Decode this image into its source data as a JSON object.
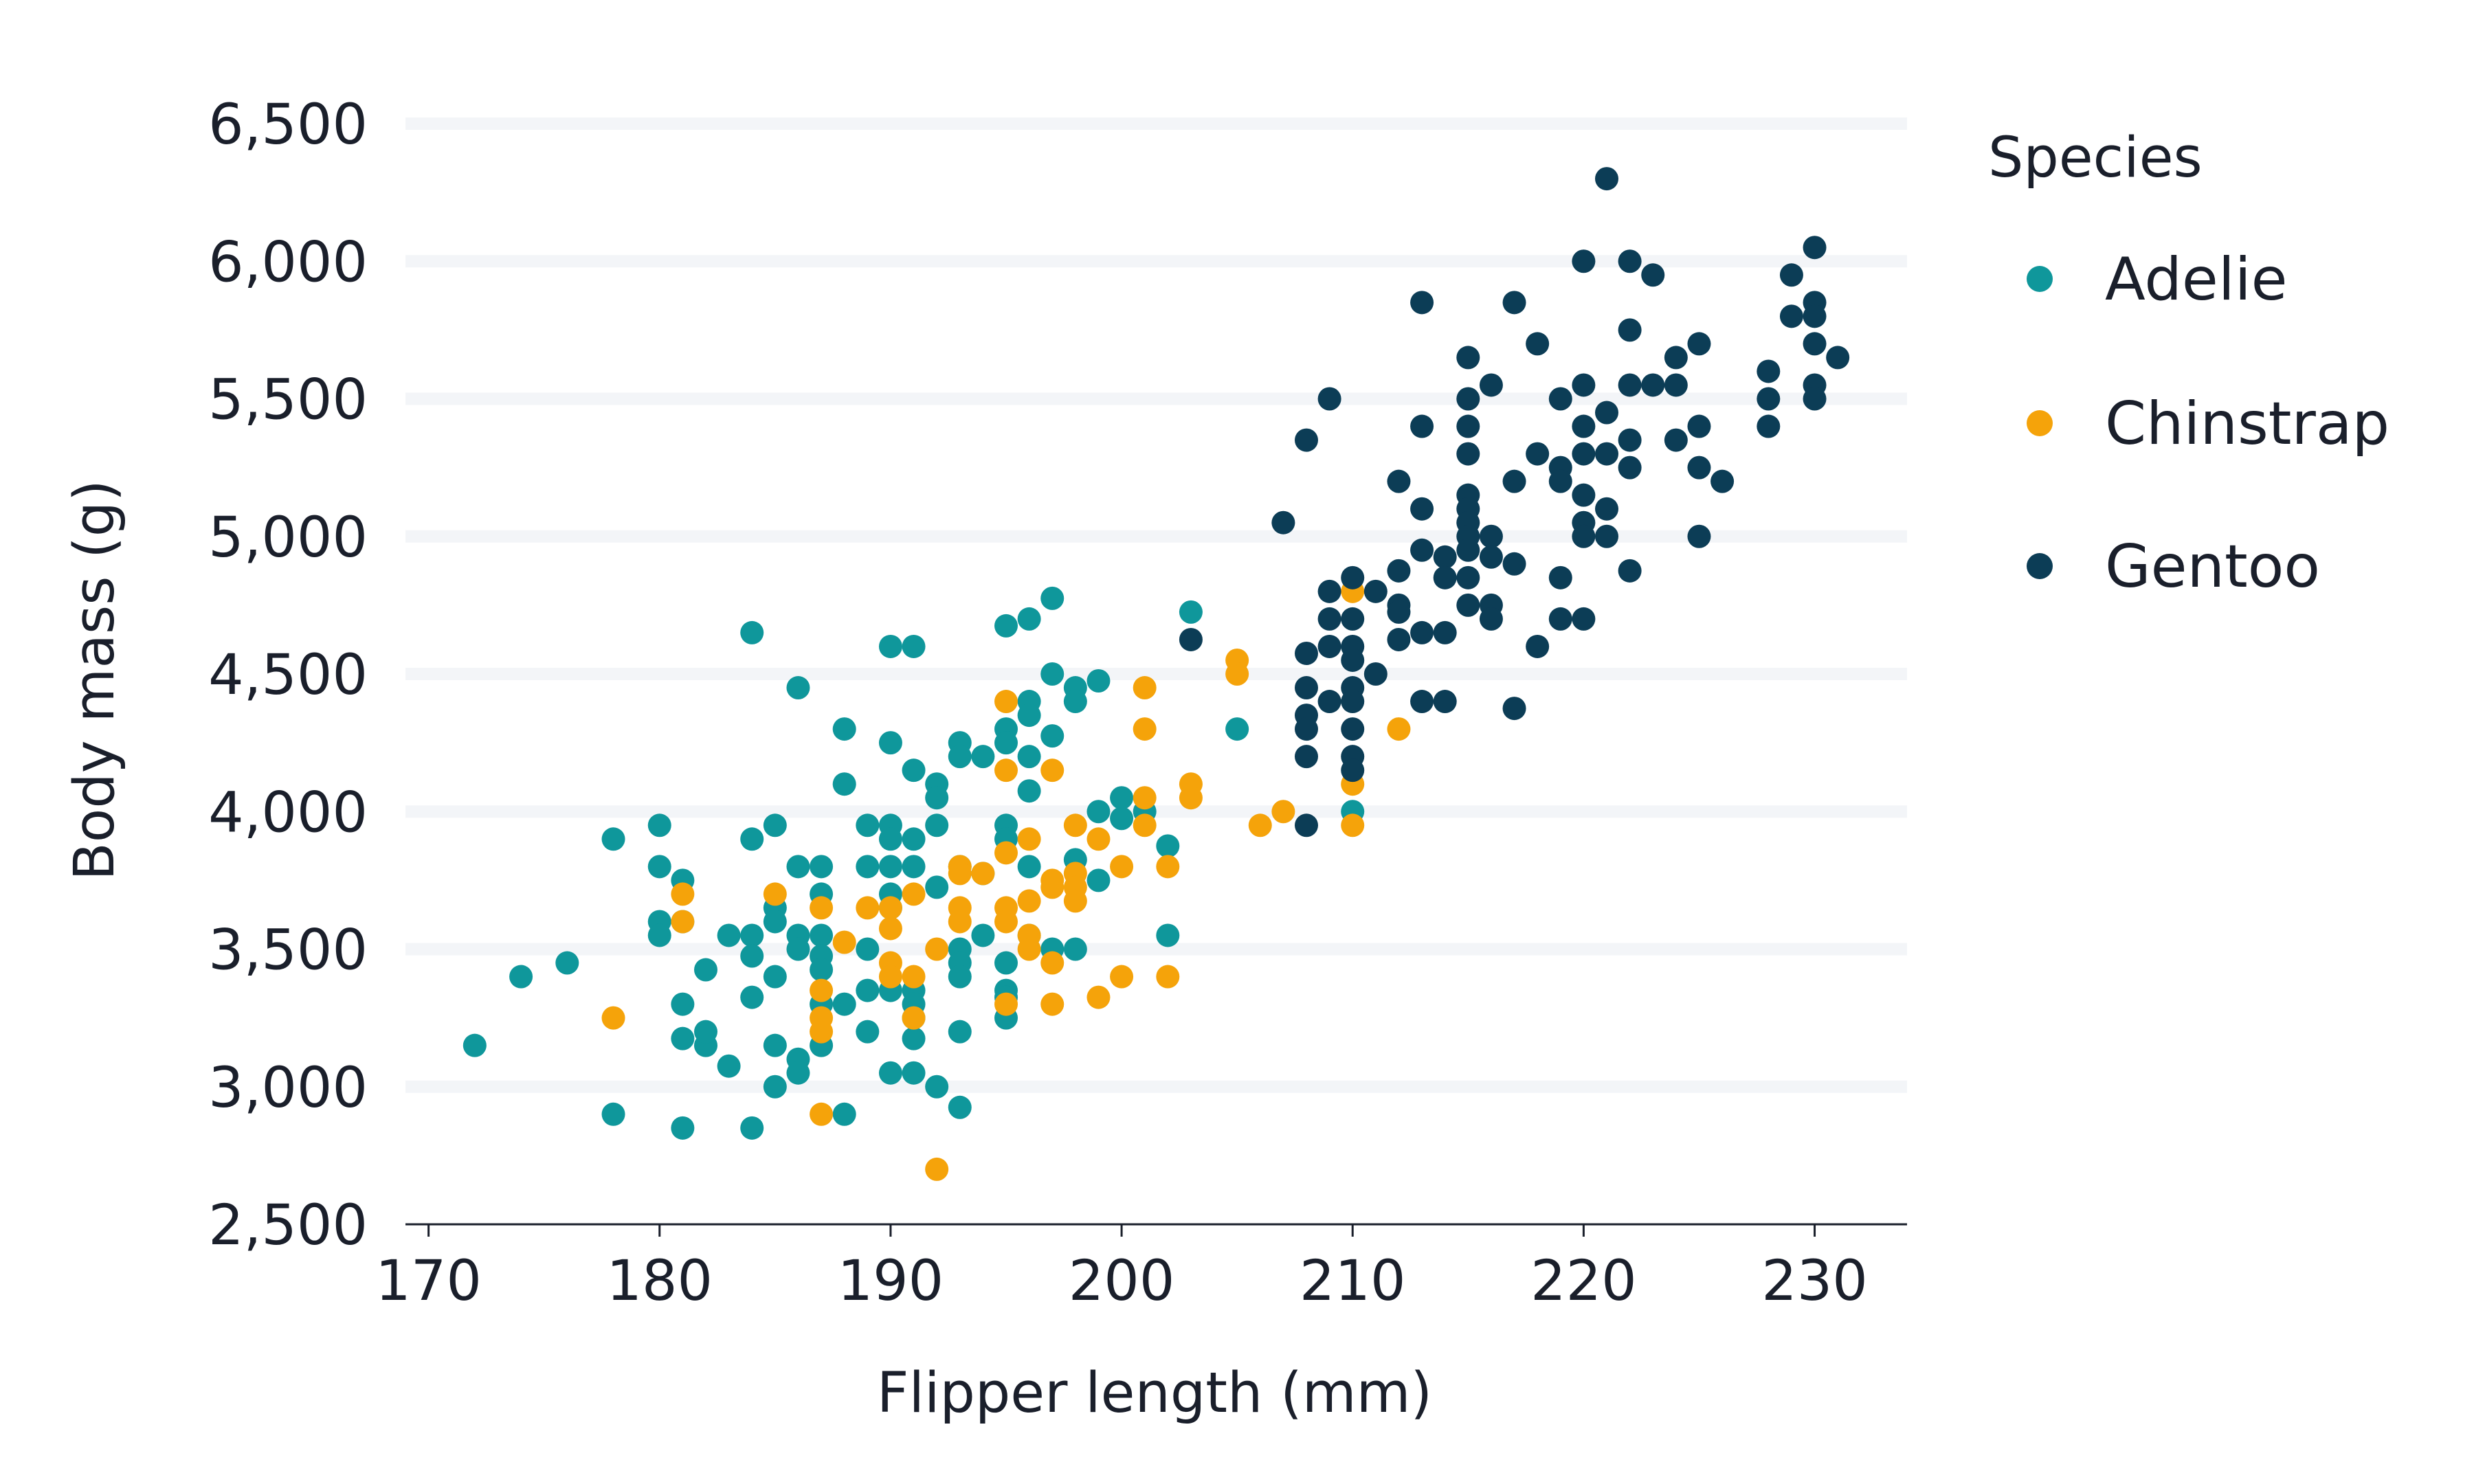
{
  "chart_data": {
    "type": "scatter",
    "title": "",
    "xlabel": "Flipper length (mm)",
    "ylabel": "Body mass (g)",
    "xlim": [
      169,
      234
    ],
    "ylim": [
      2500,
      6500
    ],
    "xticks": [
      170,
      180,
      190,
      200,
      210,
      220,
      230
    ],
    "yticks": [
      2500,
      3000,
      3500,
      4000,
      4500,
      5000,
      5500,
      6000,
      6500
    ],
    "xtick_labels": [
      "170",
      "180",
      "190",
      "200",
      "210",
      "220",
      "230"
    ],
    "ytick_labels": [
      "2,500",
      "3,000",
      "3,500",
      "4,000",
      "4,500",
      "5,000",
      "5,500",
      "6,000",
      "6,500"
    ],
    "grid": "horizontal",
    "legend": {
      "title": "Species",
      "position": "right"
    },
    "colors": {
      "Adelie": "#0f979b",
      "Chinstrap": "#f5a30a",
      "Gentoo": "#0c3d56",
      "grid": "#f3f5f8",
      "axis": "#1a1f2b"
    },
    "series": [
      {
        "name": "Adelie",
        "color": "#0f979b",
        "points": [
          [
            172,
            3150
          ],
          [
            174,
            3400
          ],
          [
            176,
            3450
          ],
          [
            178,
            3900
          ],
          [
            178,
            2900
          ],
          [
            180,
            3950
          ],
          [
            180,
            3800
          ],
          [
            180,
            3600
          ],
          [
            180,
            3550
          ],
          [
            181,
            3750
          ],
          [
            181,
            3600
          ],
          [
            181,
            3300
          ],
          [
            181,
            3175
          ],
          [
            181,
            2850
          ],
          [
            182,
            3150
          ],
          [
            182,
            3200
          ],
          [
            182,
            3425
          ],
          [
            183,
            3550
          ],
          [
            183,
            3075
          ],
          [
            184,
            4650
          ],
          [
            184,
            3900
          ],
          [
            184,
            3550
          ],
          [
            184,
            3475
          ],
          [
            184,
            3325
          ],
          [
            184,
            2850
          ],
          [
            185,
            3950
          ],
          [
            185,
            3650
          ],
          [
            185,
            3600
          ],
          [
            185,
            3400
          ],
          [
            185,
            3150
          ],
          [
            185,
            3000
          ],
          [
            186,
            4450
          ],
          [
            186,
            3800
          ],
          [
            186,
            3550
          ],
          [
            186,
            3500
          ],
          [
            186,
            3100
          ],
          [
            186,
            3050
          ],
          [
            187,
            3800
          ],
          [
            187,
            3700
          ],
          [
            187,
            3550
          ],
          [
            187,
            3475
          ],
          [
            187,
            3425
          ],
          [
            187,
            3300
          ],
          [
            187,
            3150
          ],
          [
            188,
            4300
          ],
          [
            188,
            4100
          ],
          [
            188,
            3300
          ],
          [
            188,
            2900
          ],
          [
            189,
            3950
          ],
          [
            189,
            3800
          ],
          [
            189,
            3500
          ],
          [
            189,
            3350
          ],
          [
            189,
            3200
          ],
          [
            190,
            4600
          ],
          [
            190,
            4250
          ],
          [
            190,
            3950
          ],
          [
            190,
            3900
          ],
          [
            190,
            3800
          ],
          [
            190,
            3700
          ],
          [
            190,
            3650
          ],
          [
            190,
            3350
          ],
          [
            190,
            3050
          ],
          [
            191,
            4600
          ],
          [
            191,
            4150
          ],
          [
            191,
            3900
          ],
          [
            191,
            3800
          ],
          [
            191,
            3350
          ],
          [
            191,
            3300
          ],
          [
            191,
            3250
          ],
          [
            191,
            3175
          ],
          [
            191,
            3050
          ],
          [
            192,
            4100
          ],
          [
            192,
            4050
          ],
          [
            192,
            3950
          ],
          [
            192,
            3725
          ],
          [
            192,
            3000
          ],
          [
            193,
            4250
          ],
          [
            193,
            4200
          ],
          [
            193,
            3800
          ],
          [
            193,
            3500
          ],
          [
            193,
            3450
          ],
          [
            193,
            3400
          ],
          [
            193,
            3200
          ],
          [
            193,
            2925
          ],
          [
            194,
            4200
          ],
          [
            194,
            3775
          ],
          [
            194,
            3550
          ],
          [
            195,
            4675
          ],
          [
            195,
            4300
          ],
          [
            195,
            4250
          ],
          [
            195,
            3950
          ],
          [
            195,
            3900
          ],
          [
            195,
            3450
          ],
          [
            195,
            3350
          ],
          [
            195,
            3325
          ],
          [
            195,
            3250
          ],
          [
            196,
            4700
          ],
          [
            196,
            4400
          ],
          [
            196,
            4350
          ],
          [
            196,
            4200
          ],
          [
            196,
            4075
          ],
          [
            196,
            3800
          ],
          [
            196,
            3550
          ],
          [
            197,
            4775
          ],
          [
            197,
            4500
          ],
          [
            197,
            4275
          ],
          [
            197,
            3500
          ],
          [
            198,
            4450
          ],
          [
            198,
            4400
          ],
          [
            198,
            3825
          ],
          [
            198,
            3500
          ],
          [
            199,
            4475
          ],
          [
            199,
            4000
          ],
          [
            199,
            3750
          ],
          [
            200,
            4050
          ],
          [
            200,
            3975
          ],
          [
            201,
            4000
          ],
          [
            202,
            3875
          ],
          [
            202,
            3550
          ],
          [
            203,
            4725
          ],
          [
            205,
            4300
          ],
          [
            210,
            4000
          ]
        ]
      },
      {
        "name": "Chinstrap",
        "color": "#f5a30a",
        "points": [
          [
            178,
            3250
          ],
          [
            181,
            3700
          ],
          [
            181,
            3600
          ],
          [
            185,
            3700
          ],
          [
            187,
            3650
          ],
          [
            187,
            3350
          ],
          [
            187,
            3250
          ],
          [
            187,
            3200
          ],
          [
            187,
            2900
          ],
          [
            188,
            3525
          ],
          [
            189,
            3650
          ],
          [
            190,
            3650
          ],
          [
            190,
            3575
          ],
          [
            190,
            3450
          ],
          [
            190,
            3400
          ],
          [
            191,
            3700
          ],
          [
            191,
            3400
          ],
          [
            191,
            3250
          ],
          [
            192,
            3500
          ],
          [
            192,
            2700
          ],
          [
            193,
            3800
          ],
          [
            193,
            3775
          ],
          [
            193,
            3650
          ],
          [
            193,
            3600
          ],
          [
            194,
            3775
          ],
          [
            195,
            4400
          ],
          [
            195,
            4150
          ],
          [
            195,
            3850
          ],
          [
            195,
            3650
          ],
          [
            195,
            3600
          ],
          [
            195,
            3300
          ],
          [
            196,
            3900
          ],
          [
            196,
            3675
          ],
          [
            196,
            3550
          ],
          [
            196,
            3500
          ],
          [
            197,
            4150
          ],
          [
            197,
            3750
          ],
          [
            197,
            3725
          ],
          [
            197,
            3450
          ],
          [
            197,
            3300
          ],
          [
            198,
            3950
          ],
          [
            198,
            3775
          ],
          [
            198,
            3725
          ],
          [
            198,
            3675
          ],
          [
            199,
            3900
          ],
          [
            199,
            3325
          ],
          [
            200,
            3800
          ],
          [
            200,
            3400
          ],
          [
            201,
            4450
          ],
          [
            201,
            4300
          ],
          [
            201,
            4050
          ],
          [
            201,
            3950
          ],
          [
            202,
            3800
          ],
          [
            202,
            3400
          ],
          [
            203,
            4100
          ],
          [
            203,
            4050
          ],
          [
            205,
            4550
          ],
          [
            205,
            4500
          ],
          [
            206,
            3950
          ],
          [
            207,
            4000
          ],
          [
            210,
            4800
          ],
          [
            210,
            4100
          ],
          [
            210,
            3950
          ],
          [
            212,
            4300
          ]
        ]
      },
      {
        "name": "Gentoo",
        "color": "#0c3d56",
        "points": [
          [
            203,
            4625
          ],
          [
            207,
            5050
          ],
          [
            208,
            5350
          ],
          [
            208,
            4575
          ],
          [
            208,
            4450
          ],
          [
            208,
            4350
          ],
          [
            208,
            4300
          ],
          [
            208,
            4200
          ],
          [
            208,
            3950
          ],
          [
            209,
            5500
          ],
          [
            209,
            4800
          ],
          [
            209,
            4700
          ],
          [
            209,
            4600
          ],
          [
            209,
            4400
          ],
          [
            210,
            4850
          ],
          [
            210,
            4700
          ],
          [
            210,
            4600
          ],
          [
            210,
            4550
          ],
          [
            210,
            4450
          ],
          [
            210,
            4400
          ],
          [
            210,
            4300
          ],
          [
            210,
            4200
          ],
          [
            210,
            4150
          ],
          [
            211,
            4800
          ],
          [
            211,
            4500
          ],
          [
            212,
            5200
          ],
          [
            212,
            4875
          ],
          [
            212,
            4750
          ],
          [
            212,
            4725
          ],
          [
            212,
            4625
          ],
          [
            213,
            5850
          ],
          [
            213,
            5400
          ],
          [
            213,
            5100
          ],
          [
            213,
            4950
          ],
          [
            213,
            4650
          ],
          [
            213,
            4400
          ],
          [
            214,
            4925
          ],
          [
            214,
            4850
          ],
          [
            214,
            4650
          ],
          [
            214,
            4400
          ],
          [
            215,
            5650
          ],
          [
            215,
            5500
          ],
          [
            215,
            5400
          ],
          [
            215,
            5300
          ],
          [
            215,
            5150
          ],
          [
            215,
            5100
          ],
          [
            215,
            5050
          ],
          [
            215,
            5000
          ],
          [
            215,
            4950
          ],
          [
            215,
            4850
          ],
          [
            215,
            4750
          ],
          [
            216,
            5550
          ],
          [
            216,
            5000
          ],
          [
            216,
            4925
          ],
          [
            216,
            4750
          ],
          [
            216,
            4700
          ],
          [
            217,
            5850
          ],
          [
            217,
            5200
          ],
          [
            217,
            4900
          ],
          [
            217,
            4375
          ],
          [
            218,
            5700
          ],
          [
            218,
            5300
          ],
          [
            218,
            4600
          ],
          [
            219,
            5500
          ],
          [
            219,
            5250
          ],
          [
            219,
            5200
          ],
          [
            219,
            4850
          ],
          [
            219,
            4700
          ],
          [
            220,
            6000
          ],
          [
            220,
            5550
          ],
          [
            220,
            5400
          ],
          [
            220,
            5300
          ],
          [
            220,
            5150
          ],
          [
            220,
            5050
          ],
          [
            220,
            5000
          ],
          [
            220,
            4700
          ],
          [
            221,
            6300
          ],
          [
            221,
            5450
          ],
          [
            221,
            5300
          ],
          [
            221,
            5100
          ],
          [
            221,
            5000
          ],
          [
            222,
            6000
          ],
          [
            222,
            5750
          ],
          [
            222,
            5550
          ],
          [
            222,
            5350
          ],
          [
            222,
            5250
          ],
          [
            222,
            4875
          ],
          [
            223,
            5950
          ],
          [
            223,
            5550
          ],
          [
            224,
            5650
          ],
          [
            224,
            5550
          ],
          [
            224,
            5350
          ],
          [
            225,
            5700
          ],
          [
            225,
            5400
          ],
          [
            225,
            5250
          ],
          [
            225,
            5000
          ],
          [
            226,
            5200
          ],
          [
            228,
            5600
          ],
          [
            228,
            5500
          ],
          [
            228,
            5400
          ],
          [
            229,
            5950
          ],
          [
            229,
            5800
          ],
          [
            230,
            6050
          ],
          [
            230,
            5850
          ],
          [
            230,
            5800
          ],
          [
            230,
            5700
          ],
          [
            230,
            5550
          ],
          [
            230,
            5500
          ],
          [
            231,
            5650
          ]
        ]
      }
    ]
  }
}
